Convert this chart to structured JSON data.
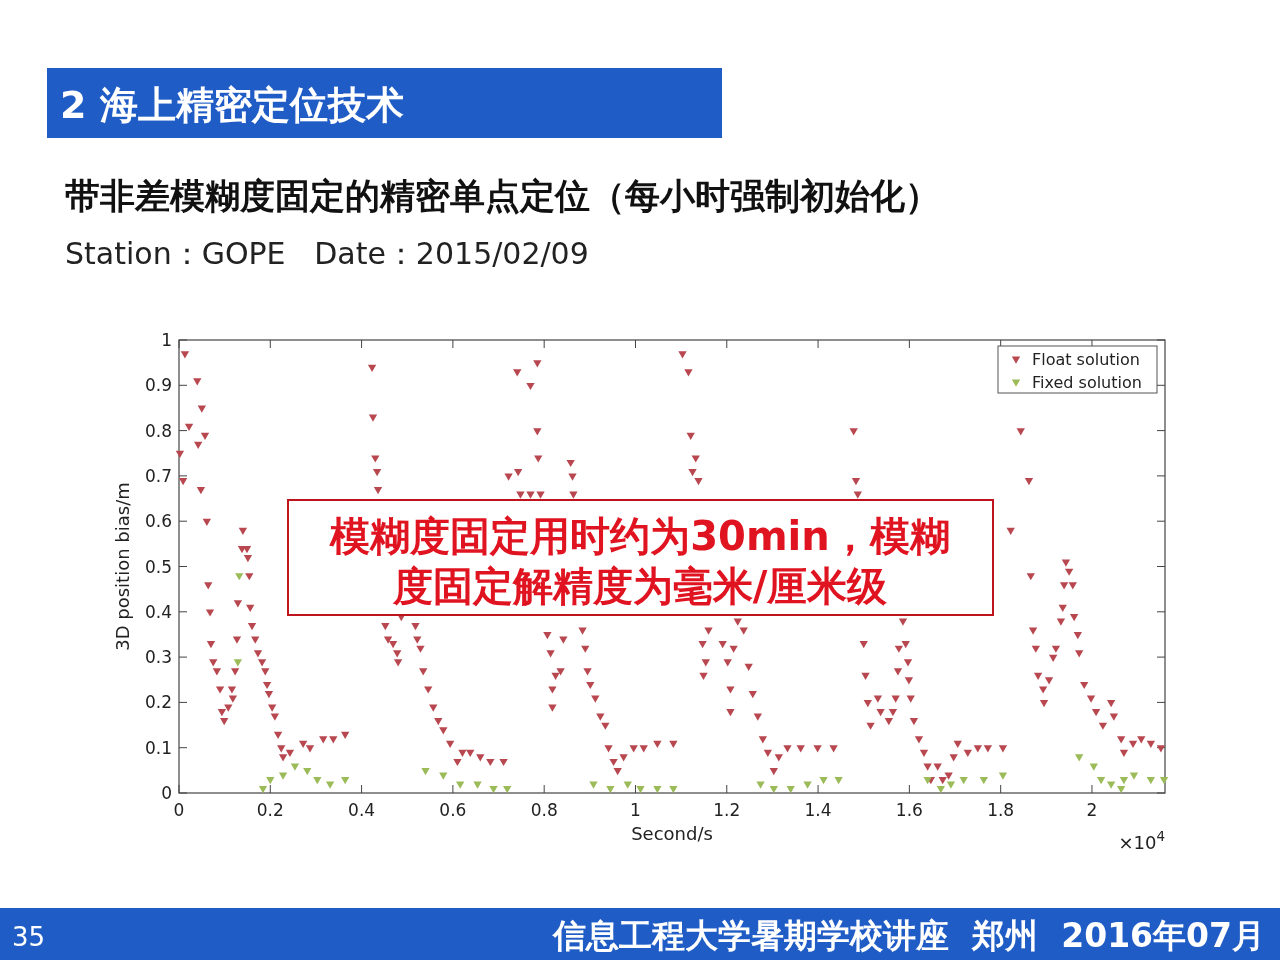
{
  "chart_data": {
    "type": "scatter",
    "title": "带非差模糊度固定的精密单点定位（每小时强制初始化）",
    "subtitle": "Station：GOPE   Date：2015/02/09",
    "xlabel": "Second/s",
    "ylabel": "3D position bias/m",
    "annotations": [
      "2 海上精密定位技术",
      "模糊度固定用时约为30min，模糊度固定解精度为毫米/厘米级",
      "×10$^{4}$",
      "35",
      "信息工程大学暑期学校讲座  郑州  2016年07月"
    ],
    "xlim": [
      0,
      2.16
    ],
    "ylim": [
      0,
      1
    ],
    "xticks": [
      0,
      0.2,
      0.4,
      0.6,
      0.8,
      1,
      1.2,
      1.4,
      1.6,
      1.8,
      2
    ],
    "yticks": [
      0,
      0.1,
      0.2,
      0.3,
      0.4,
      0.5,
      0.6,
      0.7,
      0.8,
      0.9,
      1
    ],
    "legend": "top right",
    "marker": "triangle",
    "series": [
      {
        "name": "Float solution",
        "color": "#b8474f",
        "x": [
          0.002,
          0.013,
          0.009,
          0.022,
          0.04,
          0.042,
          0.05,
          0.048,
          0.057,
          0.061,
          0.064,
          0.068,
          0.07,
          0.075,
          0.083,
          0.09,
          0.094,
          0.099,
          0.108,
          0.116,
          0.118,
          0.123,
          0.127,
          0.129,
          0.138,
          0.14,
          0.149,
          0.151,
          0.154,
          0.156,
          0.16,
          0.167,
          0.173,
          0.182,
          0.189,
          0.193,
          0.197,
          0.204,
          0.21,
          0.217,
          0.224,
          0.228,
          0.243,
          0.272,
          0.287,
          0.316,
          0.338,
          0.364,
          0.423,
          0.425,
          0.43,
          0.434,
          0.436,
          0.452,
          0.458,
          0.469,
          0.478,
          0.48,
          0.487,
          0.518,
          0.522,
          0.529,
          0.535,
          0.546,
          0.557,
          0.568,
          0.579,
          0.594,
          0.61,
          0.621,
          0.638,
          0.66,
          0.682,
          0.711,
          0.722,
          0.741,
          0.743,
          0.748,
          0.77,
          0.77,
          0.785,
          0.785,
          0.787,
          0.792,
          0.858,
          0.862,
          0.864,
          0.807,
          0.814,
          0.818,
          0.825,
          0.836,
          0.818,
          0.842,
          0.884,
          0.89,
          0.895,
          0.901,
          0.912,
          0.923,
          0.934,
          0.941,
          0.952,
          0.961,
          0.974,
          0.996,
          1.018,
          1.048,
          1.083,
          1.103,
          1.116,
          1.121,
          1.132,
          1.125,
          1.138,
          1.147,
          1.154,
          1.149,
          1.16,
          1.191,
          1.202,
          1.208,
          1.208,
          1.215,
          1.224,
          1.237,
          1.248,
          1.257,
          1.268,
          1.279,
          1.29,
          1.303,
          1.314,
          1.333,
          1.362,
          1.399,
          1.434,
          1.478,
          1.483,
          1.487,
          1.5,
          1.504,
          1.509,
          1.515,
          1.531,
          1.537,
          1.555,
          1.564,
          1.57,
          1.575,
          1.577,
          1.586,
          1.592,
          1.597,
          1.599,
          1.603,
          1.61,
          1.621,
          1.632,
          1.64,
          1.647,
          1.662,
          1.673,
          1.686,
          1.697,
          1.706,
          1.728,
          1.75,
          1.772,
          1.805,
          1.822,
          1.844,
          1.862,
          1.866,
          1.871,
          1.877,
          1.882,
          1.893,
          1.895,
          1.906,
          1.915,
          1.921,
          1.932,
          1.936,
          1.939,
          1.943,
          1.95,
          1.958,
          1.961,
          1.969,
          1.972,
          1.983,
          1.998,
          2.009,
          2.024,
          2.042,
          2.048,
          2.064,
          2.07,
          2.09,
          2.108,
          2.129,
          2.151
        ],
        "values": [
          0.75,
          0.97,
          0.69,
          0.81,
          0.91,
          0.77,
          0.85,
          0.67,
          0.79,
          0.6,
          0.46,
          0.4,
          0.33,
          0.29,
          0.27,
          0.23,
          0.18,
          0.16,
          0.19,
          0.23,
          0.21,
          0.27,
          0.34,
          0.42,
          0.54,
          0.58,
          0.54,
          0.52,
          0.48,
          0.41,
          0.37,
          0.34,
          0.31,
          0.29,
          0.27,
          0.24,
          0.22,
          0.19,
          0.17,
          0.13,
          0.1,
          0.08,
          0.09,
          0.11,
          0.1,
          0.12,
          0.12,
          0.13,
          0.94,
          0.83,
          0.74,
          0.71,
          0.67,
          0.37,
          0.34,
          0.33,
          0.31,
          0.29,
          0.39,
          0.37,
          0.34,
          0.32,
          0.27,
          0.23,
          0.19,
          0.16,
          0.14,
          0.11,
          0.07,
          0.09,
          0.09,
          0.08,
          0.07,
          0.07,
          0.7,
          0.93,
          0.71,
          0.66,
          0.9,
          0.66,
          0.95,
          0.8,
          0.74,
          0.66,
          0.73,
          0.7,
          0.66,
          0.35,
          0.31,
          0.23,
          0.26,
          0.27,
          0.19,
          0.34,
          0.36,
          0.32,
          0.27,
          0.24,
          0.21,
          0.17,
          0.15,
          0.1,
          0.07,
          0.05,
          0.08,
          0.1,
          0.1,
          0.11,
          0.11,
          0.97,
          0.93,
          0.79,
          0.74,
          0.71,
          0.69,
          0.33,
          0.29,
          0.26,
          0.36,
          0.33,
          0.29,
          0.23,
          0.18,
          0.32,
          0.38,
          0.36,
          0.28,
          0.22,
          0.17,
          0.12,
          0.09,
          0.05,
          0.08,
          0.1,
          0.1,
          0.1,
          0.1,
          0.8,
          0.69,
          0.66,
          0.33,
          0.26,
          0.2,
          0.15,
          0.21,
          0.18,
          0.16,
          0.18,
          0.21,
          0.27,
          0.32,
          0.38,
          0.33,
          0.29,
          0.25,
          0.21,
          0.16,
          0.12,
          0.09,
          0.06,
          0.03,
          0.06,
          0.03,
          0.04,
          0.08,
          0.11,
          0.09,
          0.1,
          0.1,
          0.1,
          0.58,
          0.8,
          0.69,
          0.48,
          0.36,
          0.32,
          0.26,
          0.23,
          0.2,
          0.25,
          0.3,
          0.32,
          0.38,
          0.41,
          0.46,
          0.51,
          0.49,
          0.46,
          0.39,
          0.35,
          0.31,
          0.24,
          0.21,
          0.18,
          0.15,
          0.2,
          0.17,
          0.12,
          0.09,
          0.11,
          0.12,
          0.11,
          0.1
        ]
      },
      {
        "name": "Fixed solution",
        "color": "#9bbb59",
        "x": [
          0.129,
          0.132,
          0.184,
          0.2,
          0.228,
          0.254,
          0.281,
          0.303,
          0.331,
          0.364,
          0.54,
          0.579,
          0.616,
          0.654,
          0.689,
          0.719,
          0.908,
          0.945,
          0.983,
          1.011,
          1.048,
          1.083,
          1.274,
          1.303,
          1.34,
          1.377,
          1.412,
          1.445,
          1.64,
          1.669,
          1.691,
          1.719,
          1.763,
          1.805,
          1.972,
          2.004,
          2.02,
          2.042,
          2.064,
          2.07,
          2.092,
          2.129,
          2.158
        ],
        "values": [
          0.29,
          0.48,
          0.01,
          0.03,
          0.04,
          0.06,
          0.05,
          0.03,
          0.02,
          0.03,
          0.05,
          0.04,
          0.02,
          0.02,
          0.01,
          0.01,
          0.02,
          0.01,
          0.02,
          0.01,
          0.01,
          0.01,
          0.02,
          0.01,
          0.01,
          0.02,
          0.03,
          0.03,
          0.03,
          0.01,
          0.02,
          0.03,
          0.03,
          0.04,
          0.08,
          0.06,
          0.03,
          0.02,
          0.01,
          0.03,
          0.04,
          0.03,
          0.03
        ]
      }
    ]
  }
}
